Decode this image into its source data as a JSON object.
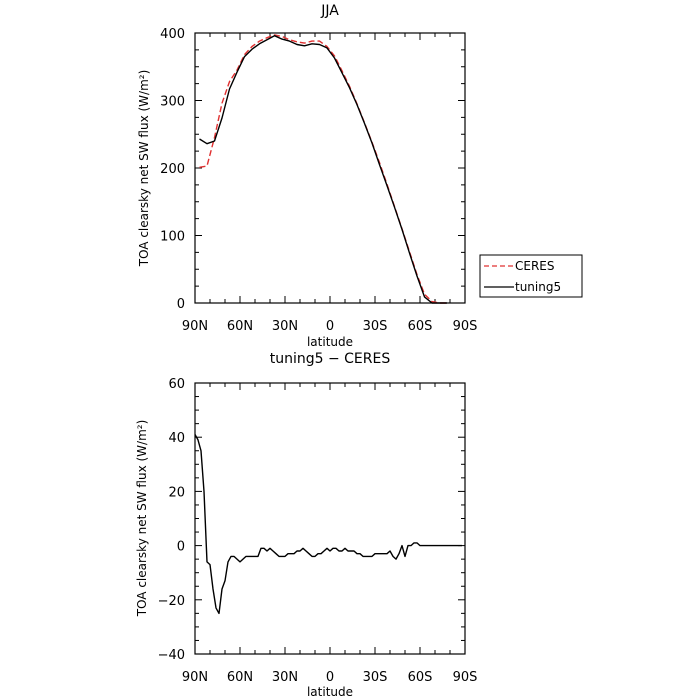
{
  "chart_data": [
    {
      "type": "line",
      "title": "JJA",
      "xlabel": "latitude",
      "ylabel": "TOA clearsky net SW flux (W/m²)",
      "xlim": [
        90,
        -90
      ],
      "ylim": [
        0,
        400
      ],
      "xticks": [
        90,
        60,
        30,
        0,
        -30,
        -60,
        -90
      ],
      "xtick_labels": [
        "90N",
        "60N",
        "30N",
        "0",
        "30S",
        "60S",
        "90S"
      ],
      "yticks": [
        0,
        100,
        200,
        300,
        400
      ],
      "ytick_labels": [
        "0",
        "100",
        "200",
        "300",
        "400"
      ],
      "legend_position": "right, outside plot",
      "series": [
        {
          "name": "CERES",
          "color": "#e03030",
          "style": "dashed",
          "x": [
            87,
            82,
            77,
            72,
            67,
            62,
            57,
            52,
            47,
            42,
            37,
            32,
            27,
            22,
            17,
            12,
            7,
            2,
            -3,
            -8,
            -13,
            -18,
            -23,
            -28,
            -33,
            -38,
            -43,
            -48,
            -53,
            -58,
            -63,
            -68,
            -73,
            -78
          ],
          "y": [
            201,
            203,
            245,
            296,
            328,
            345,
            368,
            380,
            388,
            393,
            397,
            395,
            390,
            387,
            385,
            388,
            388,
            380,
            366,
            344,
            321,
            295,
            267,
            238,
            208,
            176,
            143,
            110,
            76,
            42,
            13,
            2,
            0,
            0
          ]
        },
        {
          "name": "tuning5",
          "color": "#000000",
          "style": "solid",
          "x": [
            87,
            82,
            77,
            72,
            67,
            62,
            57,
            52,
            47,
            42,
            37,
            32,
            27,
            22,
            17,
            12,
            7,
            2,
            -3,
            -8,
            -13,
            -18,
            -23,
            -28,
            -33,
            -38,
            -43,
            -48,
            -53,
            -58,
            -63,
            -68,
            -73,
            -78
          ],
          "y": [
            243,
            236,
            240,
            274,
            317,
            342,
            365,
            376,
            384,
            390,
            396,
            391,
            388,
            383,
            381,
            384,
            383,
            378,
            363,
            341,
            319,
            294,
            266,
            237,
            205,
            174,
            142,
            109,
            74,
            40,
            9,
            0,
            0,
            0
          ]
        }
      ]
    },
    {
      "type": "line",
      "title": "tuning5 − CERES",
      "xlabel": "latitude",
      "ylabel": "TOA clearsky net SW flux (W/m²)",
      "xlim": [
        90,
        -90
      ],
      "ylim": [
        -40,
        60
      ],
      "xticks": [
        90,
        60,
        30,
        0,
        -30,
        -60,
        -90
      ],
      "xtick_labels": [
        "90N",
        "60N",
        "30N",
        "0",
        "30S",
        "60S",
        "90S"
      ],
      "yticks": [
        -40,
        -20,
        0,
        20,
        40,
        60
      ],
      "ytick_labels": [
        "−40",
        "−20",
        "0",
        "20",
        "40",
        "60"
      ],
      "series": [
        {
          "color": "#000000",
          "style": "solid",
          "x": [
            90,
            88,
            86,
            84,
            82,
            80,
            78,
            76,
            74,
            72,
            70,
            68,
            66,
            64,
            62,
            60,
            58,
            56,
            54,
            52,
            50,
            48,
            46,
            44,
            42,
            40,
            38,
            36,
            34,
            32,
            30,
            28,
            26,
            24,
            22,
            20,
            18,
            16,
            14,
            12,
            10,
            8,
            6,
            4,
            2,
            0,
            -2,
            -4,
            -6,
            -8,
            -10,
            -12,
            -14,
            -16,
            -18,
            -20,
            -22,
            -24,
            -26,
            -28,
            -30,
            -32,
            -34,
            -36,
            -38,
            -40,
            -42,
            -44,
            -46,
            -48,
            -50,
            -52,
            -54,
            -56,
            -58,
            -60,
            -62,
            -64,
            -66,
            -68,
            -70,
            -72,
            -74,
            -76,
            -78,
            -80,
            -82,
            -84,
            -86,
            -88
          ],
          "y": [
            41,
            39,
            35,
            20,
            -6,
            -7,
            -16,
            -23,
            -25,
            -16,
            -13,
            -6,
            -4,
            -4,
            -5,
            -6,
            -5,
            -4,
            -4,
            -4,
            -4,
            -4,
            -1,
            -1,
            -2,
            -1,
            -2,
            -3,
            -4,
            -4,
            -4,
            -3,
            -3,
            -3,
            -2,
            -2,
            -1,
            -2,
            -3,
            -4,
            -4,
            -3,
            -3,
            -2,
            -1,
            -2,
            -1,
            -1,
            -2,
            -2,
            -1,
            -2,
            -2,
            -2,
            -3,
            -3,
            -4,
            -4,
            -4,
            -4,
            -3,
            -3,
            -3,
            -3,
            -3,
            -2,
            -4,
            -5,
            -3,
            0,
            -4,
            0,
            0,
            1,
            1,
            0,
            0,
            0,
            0,
            0,
            0,
            0,
            0,
            0,
            0,
            0,
            0,
            0,
            0,
            0
          ]
        }
      ]
    }
  ]
}
